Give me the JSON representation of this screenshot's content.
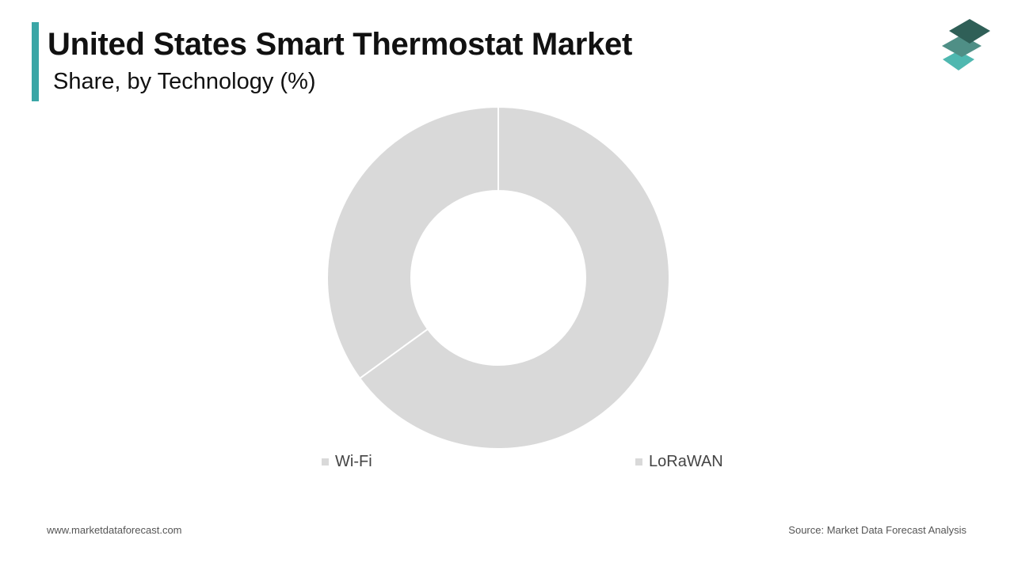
{
  "header": {
    "title": "United States Smart Thermostat Market",
    "subtitle": "Share, by Technology (%)",
    "accent_color": "#3aa6a6"
  },
  "logo": {
    "icon": "stacked-layers-logo-icon",
    "colors": [
      "#2f5f57",
      "#4f8f86",
      "#4fb8b0"
    ]
  },
  "chart_data": {
    "type": "pie",
    "donut": true,
    "categories": [
      "Wi-Fi",
      "LoRaWAN"
    ],
    "values": [
      35,
      65
    ],
    "colors": [
      "#d9d9d9",
      "#d9d9d9"
    ],
    "legend_position": "bottom"
  },
  "footer": {
    "website": "www.marketdataforecast.com",
    "source": "Source: Market Data Forecast Analysis"
  }
}
